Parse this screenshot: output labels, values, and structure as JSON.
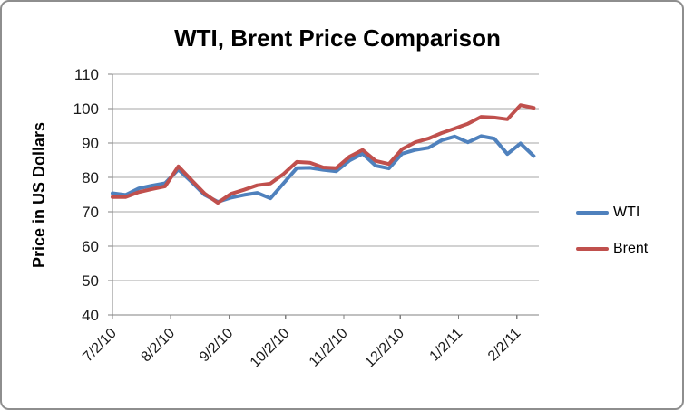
{
  "chart_data": {
    "type": "line",
    "title": "WTI, Brent Price Comparison",
    "ylabel": "Price in US Dollars",
    "xlabel": "",
    "ylim": [
      40,
      110
    ],
    "ytick_step": 10,
    "ytick_labels": [
      "110",
      "100",
      "90",
      "80",
      "70",
      "60",
      "50",
      "40"
    ],
    "xtick_labels": [
      "7/2/10",
      "8/2/10",
      "9/2/10",
      "10/2/10",
      "11/2/10",
      "12/2/10",
      "1/2/11",
      "2/2/11"
    ],
    "grid": true,
    "legend_position": "right",
    "x_dates": [
      "7/2/10",
      "7/9/10",
      "7/16/10",
      "7/23/10",
      "7/30/10",
      "8/6/10",
      "8/13/10",
      "8/20/10",
      "8/27/10",
      "9/3/10",
      "9/10/10",
      "9/17/10",
      "9/24/10",
      "10/1/10",
      "10/8/10",
      "10/15/10",
      "10/22/10",
      "10/29/10",
      "11/5/10",
      "11/12/10",
      "11/19/10",
      "11/26/10",
      "12/3/10",
      "12/10/10",
      "12/17/10",
      "12/24/10",
      "12/31/10",
      "1/7/11",
      "1/14/11",
      "1/21/11",
      "1/28/11",
      "2/4/11",
      "2/11/11"
    ],
    "series": [
      {
        "name": "WTI",
        "color": "#4F81BD",
        "values": [
          75.4,
          74.9,
          76.8,
          77.6,
          78.3,
          82.3,
          78.7,
          74.9,
          72.9,
          74.1,
          74.9,
          75.5,
          73.9,
          78.3,
          82.7,
          82.8,
          82.2,
          81.8,
          84.9,
          86.9,
          83.4,
          82.6,
          86.9,
          88.0,
          88.6,
          90.8,
          91.9,
          90.2,
          92.0,
          91.3,
          86.8,
          89.9,
          86.2
        ]
      },
      {
        "name": "Brent",
        "color": "#C0504D",
        "values": [
          74.3,
          74.3,
          75.7,
          76.6,
          77.4,
          83.2,
          79.2,
          75.3,
          72.6,
          75.2,
          76.4,
          77.7,
          78.2,
          81.0,
          84.5,
          84.3,
          82.9,
          82.7,
          86.0,
          88.0,
          84.8,
          83.9,
          88.2,
          90.2,
          91.3,
          92.9,
          94.2,
          95.6,
          97.6,
          97.4,
          96.9,
          101.0,
          100.2
        ]
      }
    ]
  }
}
